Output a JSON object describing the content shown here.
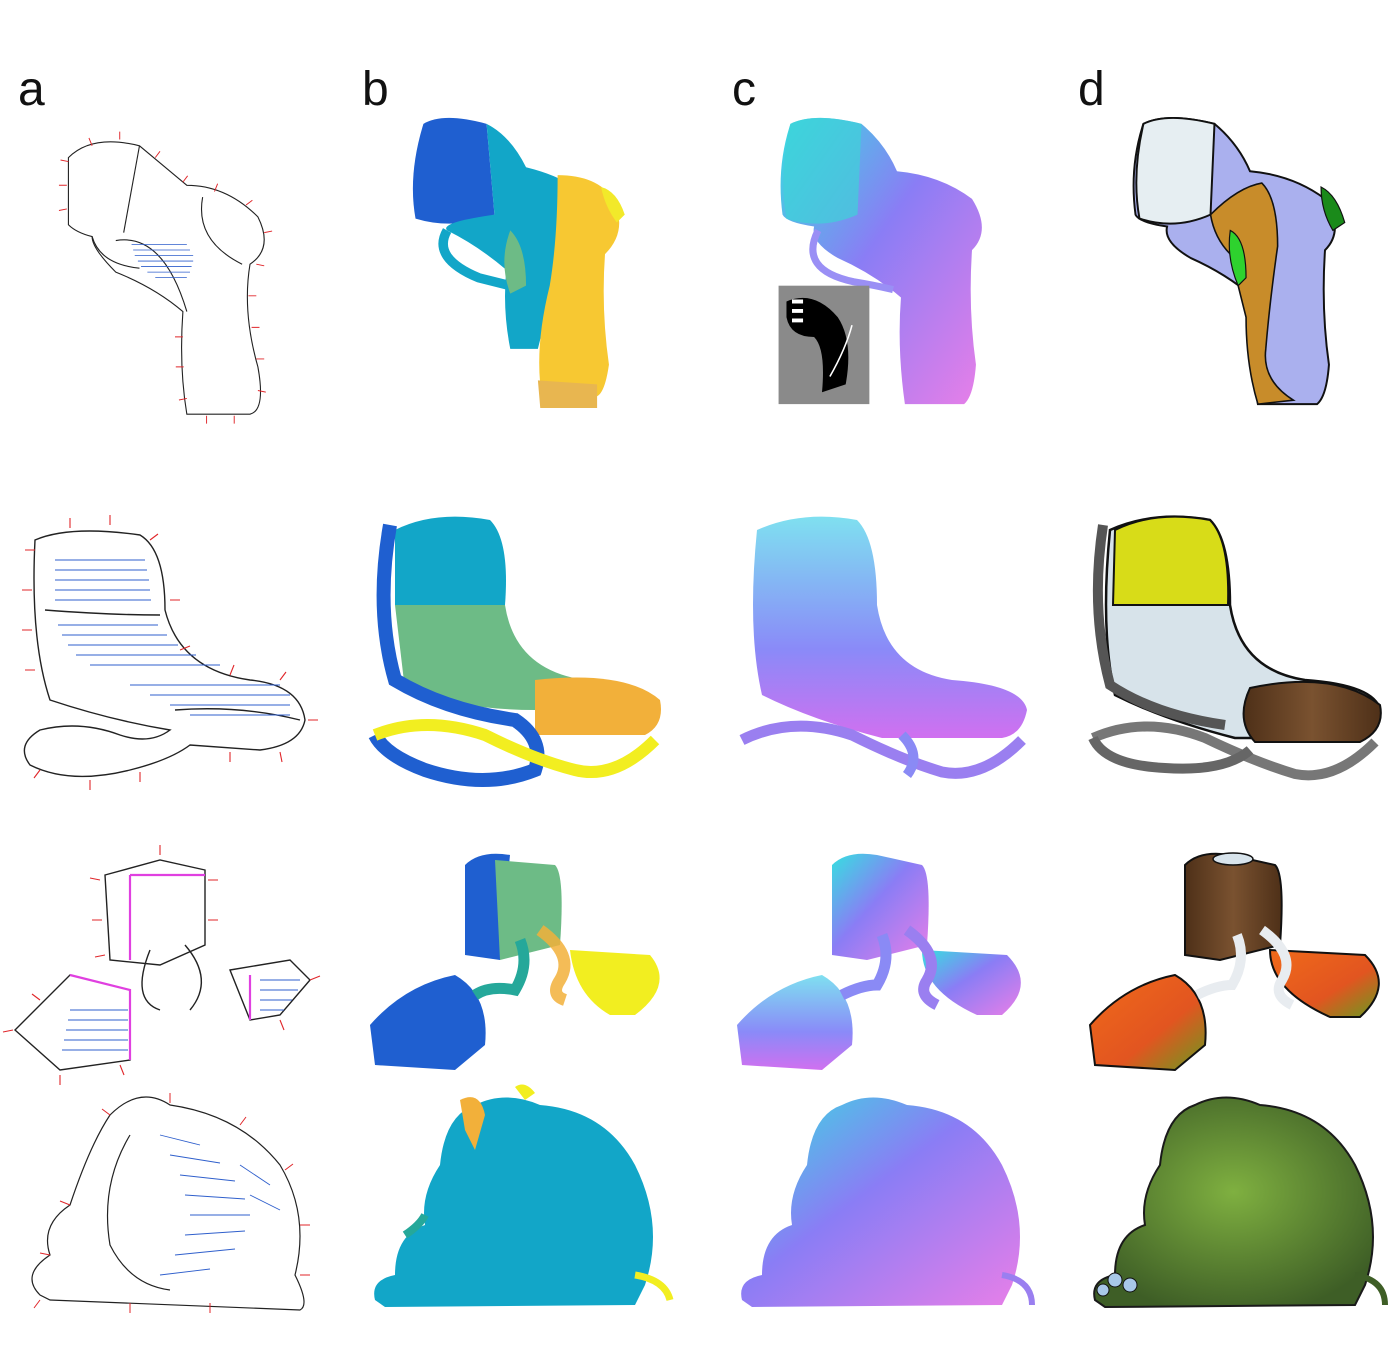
{
  "figure": {
    "columns": [
      {
        "label": "a"
      },
      {
        "label": "b"
      },
      {
        "label": "c"
      },
      {
        "label": "d"
      }
    ],
    "rows": [
      "shoe",
      "chair",
      "abstract-shapes",
      "elephant"
    ],
    "colors": {
      "sketch_line": "#222222",
      "normal_tick": "#e0262a",
      "hatch": "#2f5fcc",
      "seg_blue": "#1f5fd0",
      "seg_cyan": "#12a6c8",
      "seg_yellow": "#f7c832",
      "seg_green": "#6dbb86",
      "seg_orange": "#f2b03a",
      "normal_violet": "#8a7df5",
      "normal_cyan": "#35e0e0",
      "normal_pink": "#e87fe8",
      "render_lavender": "#aab0ee",
      "render_ochre": "#c88c2a",
      "render_green": "#2ed22e",
      "render_lime": "#d8dc18",
      "render_wood": "#6b4526",
      "render_orange": "#e9571e",
      "render_olive": "#5b7d2a"
    }
  }
}
